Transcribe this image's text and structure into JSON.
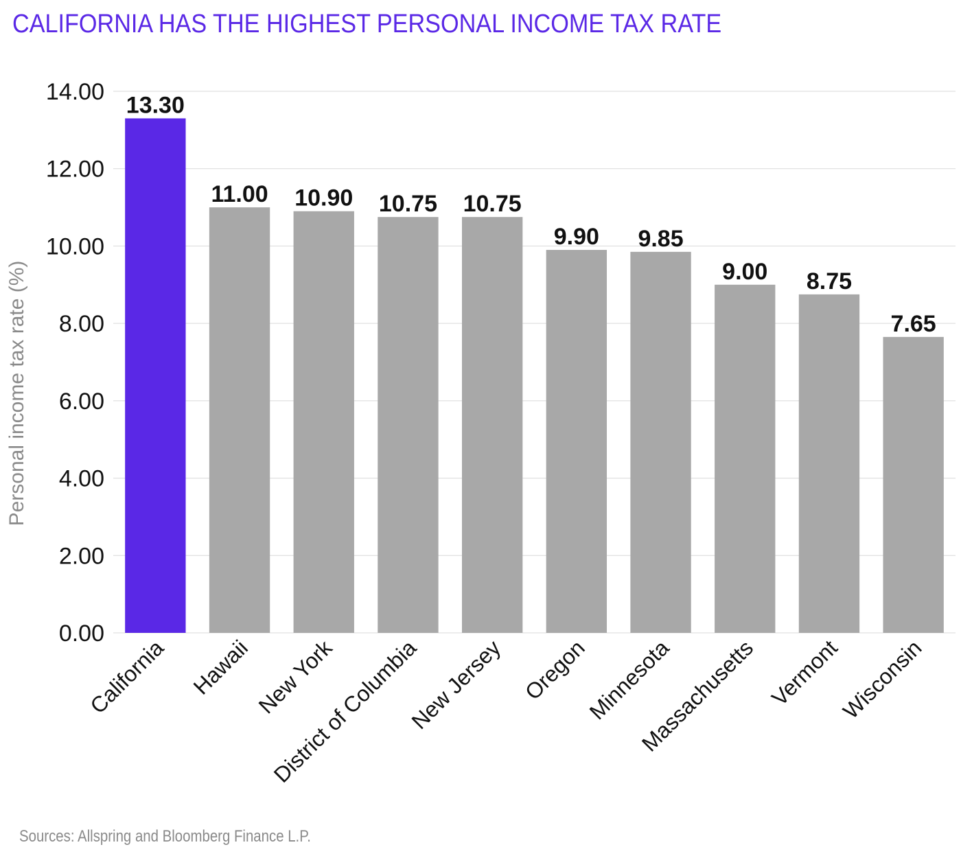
{
  "chart_data": {
    "type": "bar",
    "title": "CALIFORNIA HAS THE HIGHEST PERSONAL INCOME TAX RATE",
    "xlabel": "",
    "ylabel": "Personal income tax rate (%)",
    "categories": [
      "California",
      "Hawaii",
      "New York",
      "District of Columbia",
      "New Jersey",
      "Oregon",
      "Minnesota",
      "Massachusetts",
      "Vermont",
      "Wisconsin"
    ],
    "values": [
      13.3,
      11.0,
      10.9,
      10.75,
      10.75,
      9.9,
      9.85,
      9.0,
      8.75,
      7.65
    ],
    "value_labels": [
      "13.30",
      "11.00",
      "10.90",
      "10.75",
      "10.75",
      "9.90",
      "9.85",
      "9.00",
      "8.75",
      "7.65"
    ],
    "ylim": [
      0,
      14
    ],
    "yticks": [
      0,
      2,
      4,
      6,
      8,
      10,
      12,
      14
    ],
    "ytick_labels": [
      "0.00",
      "2.00",
      "4.00",
      "6.00",
      "8.00",
      "10.00",
      "12.00",
      "14.00"
    ],
    "grid": true,
    "highlight_color": "#5a28e6",
    "bar_color": "#a8a8a8",
    "highlight_index": 0
  },
  "source": "Sources: Allspring and Bloomberg Finance L.P."
}
